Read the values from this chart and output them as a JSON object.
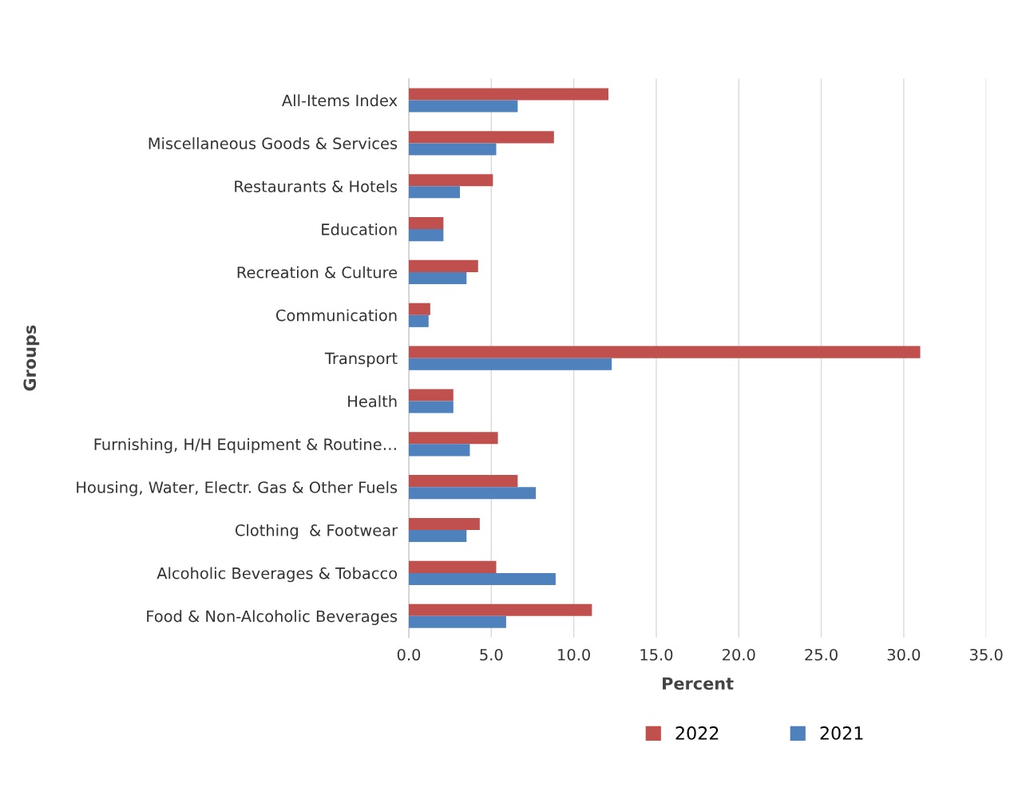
{
  "chart_data": {
    "type": "bar",
    "orientation": "horizontal",
    "xlabel": "Percent",
    "ylabel": "Groups",
    "categories": [
      "All-Items Index",
      "Miscellaneous Goods & Services",
      "Restaurants & Hotels",
      "Education",
      "Recreation & Culture",
      "Communication",
      "Transport",
      "Health",
      "Furnishing, H/H Equipment & Routine…",
      "Housing, Water, Electr. Gas & Other Fuels",
      "Clothing  & Footwear",
      "Alcoholic Beverages & Tobacco",
      "Food & Non-Alcoholic Beverages"
    ],
    "series": [
      {
        "name": "2022",
        "color": "#c0504d",
        "values": [
          12.1,
          8.8,
          5.1,
          2.1,
          4.2,
          1.3,
          31.0,
          2.7,
          5.4,
          6.6,
          4.3,
          5.3,
          11.1
        ]
      },
      {
        "name": "2021",
        "color": "#4f81bd",
        "values": [
          6.6,
          5.3,
          3.1,
          2.1,
          3.5,
          1.2,
          12.3,
          2.7,
          3.7,
          7.7,
          3.5,
          8.9,
          5.9
        ]
      }
    ],
    "xlim": [
      0,
      35
    ],
    "xticks": [
      {
        "value": 0,
        "label": "0.0"
      },
      {
        "value": 5,
        "label": "5.0"
      },
      {
        "value": 10,
        "label": "10.0"
      },
      {
        "value": 15,
        "label": "15.0"
      },
      {
        "value": 20,
        "label": "20.0"
      },
      {
        "value": 25,
        "label": "25.0"
      },
      {
        "value": 30,
        "label": "30.0"
      },
      {
        "value": 35,
        "label": "35.0"
      }
    ],
    "grid": "x",
    "legend": "bottom"
  }
}
